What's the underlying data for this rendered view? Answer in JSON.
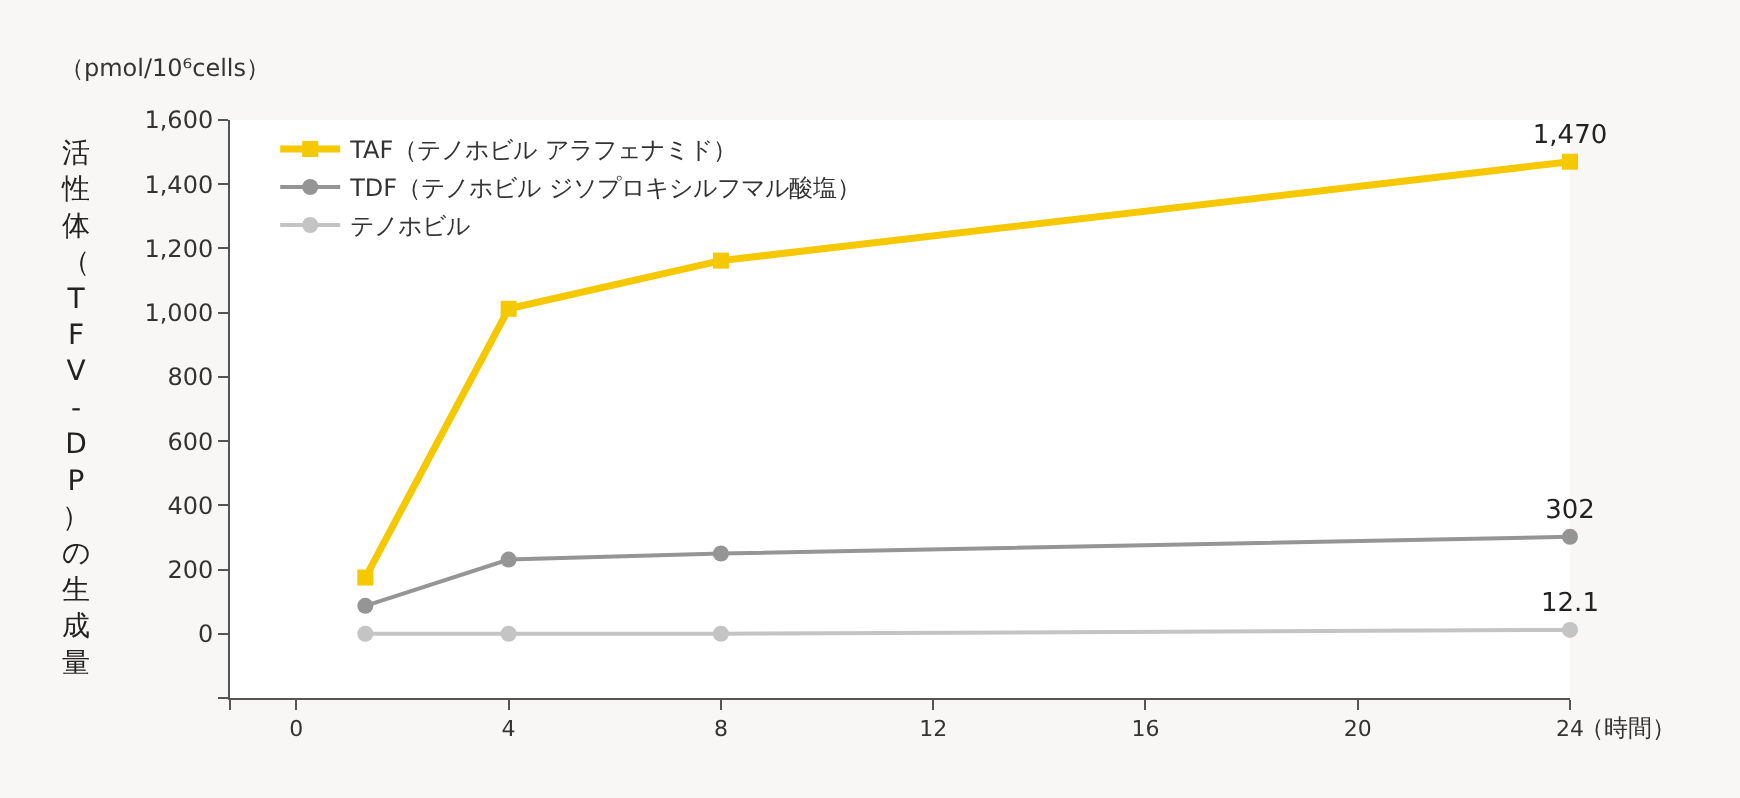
{
  "chart_data": {
    "type": "line",
    "ylabel": "活性体（TFV-DP）の生成量",
    "xlabel": "（時間）",
    "annotations": [
      "（pmol/10⁶cells）"
    ],
    "x": [
      1.3,
      4,
      8,
      24
    ],
    "xlim": [
      -1.25,
      24
    ],
    "xticks": [
      {
        "value": -1.25,
        "label": null
      },
      0,
      4,
      8,
      12,
      16,
      20,
      24
    ],
    "ylim": [
      -200,
      1600
    ],
    "yticks": [
      {
        "value": -200,
        "label": null
      },
      0,
      200,
      400,
      600,
      800,
      {
        "value": 1000,
        "label": "1,000"
      },
      {
        "value": 1200,
        "label": "1,200"
      },
      {
        "value": 1400,
        "label": "1,400"
      },
      {
        "value": 1600,
        "label": "1,600"
      }
    ],
    "grid": false,
    "legend": "top left",
    "series": [
      {
        "name": "TAF（テノホビル アラフェナミド）",
        "color": "#f5c800",
        "marker": "square",
        "values": [
          175,
          1012,
          1162,
          1470
        ],
        "value_labels": [
          null,
          null,
          null,
          "1,470"
        ]
      },
      {
        "name": "TDF（テノホビル ジソプロキシルフマル酸塩）",
        "color": "#959595",
        "marker": "circle",
        "values": [
          87,
          231,
          250,
          302
        ],
        "value_labels": [
          null,
          null,
          null,
          "302"
        ]
      },
      {
        "name": "テノホビル",
        "color": "#c4c4c4",
        "marker": "circle",
        "values": [
          0,
          0,
          0,
          12.1
        ],
        "value_labels": [
          null,
          null,
          null,
          "12.1"
        ]
      }
    ]
  }
}
